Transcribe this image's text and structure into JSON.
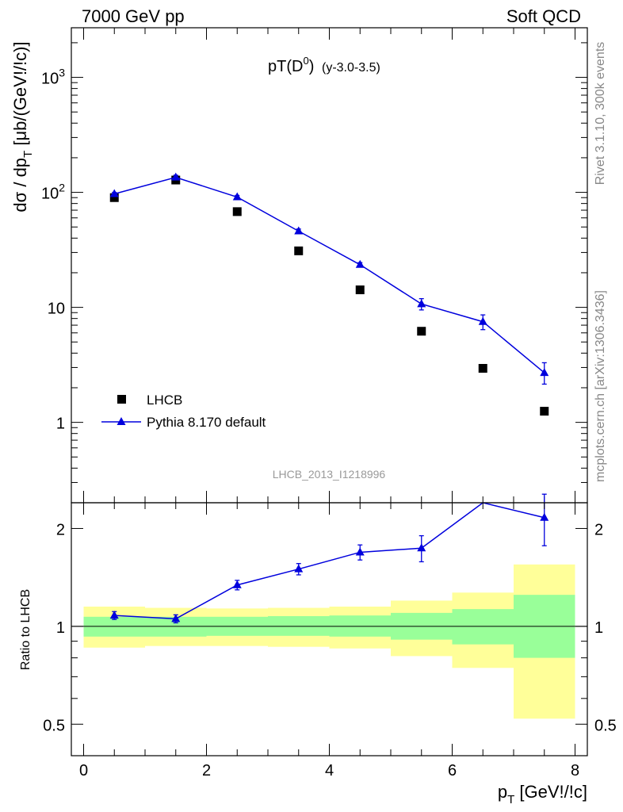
{
  "header": {
    "left": "7000 GeV pp",
    "right": "Soft QCD"
  },
  "side_labels": {
    "rivet": "Rivet 3.1.10,  300k events",
    "mcplots": "mcplots.cern.ch [arXiv:1306.3436]"
  },
  "chart_data": [
    {
      "type": "scatter",
      "panel": "main",
      "title": "pT(D0) (y-3.0-3.5)",
      "title_main": "pT(D",
      "title_sup": "0",
      "title_close": ")",
      "title_sub": "(y-3.0-3.5)",
      "ylabel": "dσ / dp_T [μb/(GeV!/!c)]",
      "ylabel_main": "dσ / dp",
      "ylabel_sub": "T",
      "ylabel_tail": " [μb/(GeV!/!c)]",
      "yscale": "log",
      "xlim": [
        -0.2,
        8.2
      ],
      "ylim": [
        0.2,
        2700
      ],
      "yticks": [
        {
          "value": 1000,
          "base": "10",
          "exp": "3"
        },
        {
          "value": 100,
          "base": "10",
          "exp": "2"
        },
        {
          "value": 10,
          "base": "10",
          "exp": ""
        },
        {
          "value": 1,
          "base": "1",
          "exp": ""
        }
      ],
      "analysis_label": "LHCB_2013_I1218996",
      "legend_position": "bottom-left",
      "series": [
        {
          "name": "LHCB",
          "style": "marker-square",
          "color": "#000000",
          "x": [
            0.5,
            1.5,
            2.5,
            3.5,
            4.5,
            5.5,
            6.5,
            7.5
          ],
          "y": [
            90,
            128,
            68,
            31,
            14.2,
            6.2,
            2.95,
            1.25
          ]
        },
        {
          "name": "Pythia 8.170 default",
          "style": "line-triangle",
          "color": "#0000dd",
          "x": [
            0.5,
            1.5,
            2.5,
            3.5,
            4.5,
            5.5,
            6.5,
            7.5
          ],
          "y": [
            97,
            135,
            91,
            46,
            23.5,
            10.7,
            7.5,
            2.7
          ],
          "y_err_low": [
            3,
            6,
            3,
            2,
            1,
            1.2,
            1.1,
            0.55
          ],
          "y_err_high": [
            3,
            6,
            3,
            2,
            1,
            1.2,
            1.1,
            0.6
          ]
        }
      ]
    },
    {
      "type": "line",
      "panel": "ratio",
      "ylabel": "Ratio to LHCB",
      "xlabel": "p_T [GeV!/!c]",
      "xlabel_main": "p",
      "xlabel_sub": "T",
      "xlabel_tail": " [GeV!/!c]",
      "yscale": "log",
      "xlim": [
        -0.2,
        8.2
      ],
      "ylim": [
        0.4,
        2.4
      ],
      "xticks": [
        0,
        2,
        4,
        6,
        8
      ],
      "yticks": [
        0.5,
        1,
        2
      ],
      "bands": [
        {
          "x0": 0,
          "x1": 1,
          "green": [
            0.93,
            1.07
          ],
          "yellow": [
            0.86,
            1.15
          ]
        },
        {
          "x0": 1,
          "x1": 2,
          "green": [
            0.93,
            1.07
          ],
          "yellow": [
            0.87,
            1.14
          ]
        },
        {
          "x0": 2,
          "x1": 3,
          "green": [
            0.935,
            1.07
          ],
          "yellow": [
            0.87,
            1.135
          ]
        },
        {
          "x0": 3,
          "x1": 4,
          "green": [
            0.935,
            1.075
          ],
          "yellow": [
            0.865,
            1.14
          ]
        },
        {
          "x0": 4,
          "x1": 5,
          "green": [
            0.93,
            1.08
          ],
          "yellow": [
            0.855,
            1.15
          ]
        },
        {
          "x0": 5,
          "x1": 6,
          "green": [
            0.91,
            1.1
          ],
          "yellow": [
            0.81,
            1.2
          ]
        },
        {
          "x0": 6,
          "x1": 7,
          "green": [
            0.88,
            1.13
          ],
          "yellow": [
            0.745,
            1.27
          ]
        },
        {
          "x0": 7,
          "x1": 8,
          "green": [
            0.8,
            1.25
          ],
          "yellow": [
            0.52,
            1.55
          ]
        }
      ],
      "series": [
        {
          "name": "Pythia 8.170 default",
          "color": "#0000dd",
          "x": [
            0.5,
            1.5,
            2.5,
            3.5,
            4.5,
            5.5,
            6.5,
            7.5
          ],
          "y": [
            1.08,
            1.055,
            1.34,
            1.5,
            1.69,
            1.74,
            2.5,
            2.16
          ],
          "y_err_low": [
            0.03,
            0.03,
            0.045,
            0.06,
            0.09,
            0.16,
            0.0,
            0.39
          ],
          "y_err_high": [
            0.03,
            0.03,
            0.045,
            0.06,
            0.09,
            0.16,
            0.0,
            0.39
          ]
        }
      ]
    }
  ]
}
